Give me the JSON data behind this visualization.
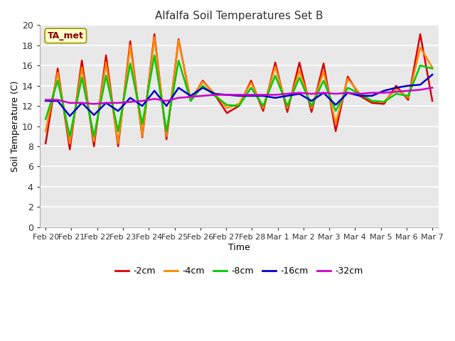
{
  "title": "Alfalfa Soil Temperatures Set B",
  "xlabel": "Time",
  "ylabel": "Soil Temperature (C)",
  "ylim": [
    0,
    20
  ],
  "yticks": [
    0,
    2,
    4,
    6,
    8,
    10,
    12,
    14,
    16,
    18,
    20
  ],
  "bg_color": "#e8e8e8",
  "plot_bg": "#e8e8e8",
  "annotation_text": "TA_met",
  "annotation_bg": "#ffffcc",
  "annotation_border": "#999900",
  "annotation_text_color": "#880000",
  "x_labels": [
    "Feb 20",
    "Feb 21",
    "Feb 22",
    "Feb 23",
    "Feb 24",
    "Feb 25",
    "Feb 26",
    "Feb 27",
    "Feb 28",
    "Mar 1",
    "Mar 2",
    "Mar 3",
    "Mar 4",
    "Mar 5",
    "Mar 6",
    "Mar 7"
  ],
  "series": {
    "-2cm": {
      "color": "#dd0000",
      "linewidth": 1.8,
      "values": [
        8.3,
        15.7,
        7.7,
        16.5,
        8.0,
        17.0,
        8.0,
        18.4,
        8.9,
        19.1,
        8.7,
        18.6,
        12.5,
        14.5,
        13.1,
        11.3,
        12.0,
        14.5,
        11.5,
        16.3,
        11.4,
        16.3,
        11.4,
        16.2,
        9.5,
        14.9,
        13.0,
        12.3,
        12.2,
        14.0,
        12.6,
        19.1,
        12.5
      ]
    },
    "-4cm": {
      "color": "#ff8800",
      "linewidth": 1.8,
      "values": [
        9.5,
        15.3,
        8.3,
        15.8,
        8.5,
        16.3,
        8.3,
        18.0,
        9.0,
        18.8,
        9.0,
        18.5,
        12.6,
        14.4,
        13.2,
        11.8,
        12.2,
        14.3,
        11.8,
        15.9,
        11.8,
        15.5,
        11.8,
        15.4,
        10.3,
        14.7,
        13.2,
        12.5,
        12.4,
        13.7,
        12.8,
        17.8,
        15.8
      ]
    },
    "-8cm": {
      "color": "#00cc00",
      "linewidth": 1.8,
      "values": [
        10.7,
        14.5,
        9.0,
        14.8,
        9.0,
        15.0,
        9.5,
        16.2,
        10.2,
        17.0,
        9.5,
        16.5,
        12.5,
        14.0,
        13.0,
        12.1,
        12.0,
        13.8,
        12.0,
        15.0,
        12.0,
        14.8,
        12.0,
        14.5,
        11.5,
        13.8,
        13.2,
        12.5,
        12.4,
        13.2,
        13.0,
        16.0,
        15.7
      ]
    },
    "-16cm": {
      "color": "#0000cc",
      "linewidth": 1.8,
      "values": [
        12.5,
        12.5,
        11.0,
        12.3,
        11.1,
        12.3,
        11.5,
        12.8,
        12.0,
        13.5,
        12.0,
        13.8,
        13.0,
        13.8,
        13.2,
        13.1,
        13.0,
        13.0,
        13.0,
        12.8,
        13.0,
        13.2,
        12.5,
        13.3,
        12.1,
        13.3,
        13.0,
        13.0,
        13.5,
        13.8,
        14.0,
        14.1,
        15.1
      ]
    },
    "-32cm": {
      "color": "#cc00cc",
      "linewidth": 1.8,
      "values": [
        12.6,
        12.6,
        12.3,
        12.3,
        12.2,
        12.3,
        12.3,
        12.4,
        12.5,
        12.7,
        12.5,
        12.8,
        12.9,
        13.0,
        13.1,
        13.1,
        13.1,
        13.1,
        13.1,
        13.1,
        13.2,
        13.3,
        13.2,
        13.3,
        13.2,
        13.3,
        13.2,
        13.3,
        13.3,
        13.4,
        13.5,
        13.6,
        13.8
      ]
    }
  },
  "legend_order": [
    "-2cm",
    "-4cm",
    "-8cm",
    "-16cm",
    "-32cm"
  ],
  "n_points": 33
}
